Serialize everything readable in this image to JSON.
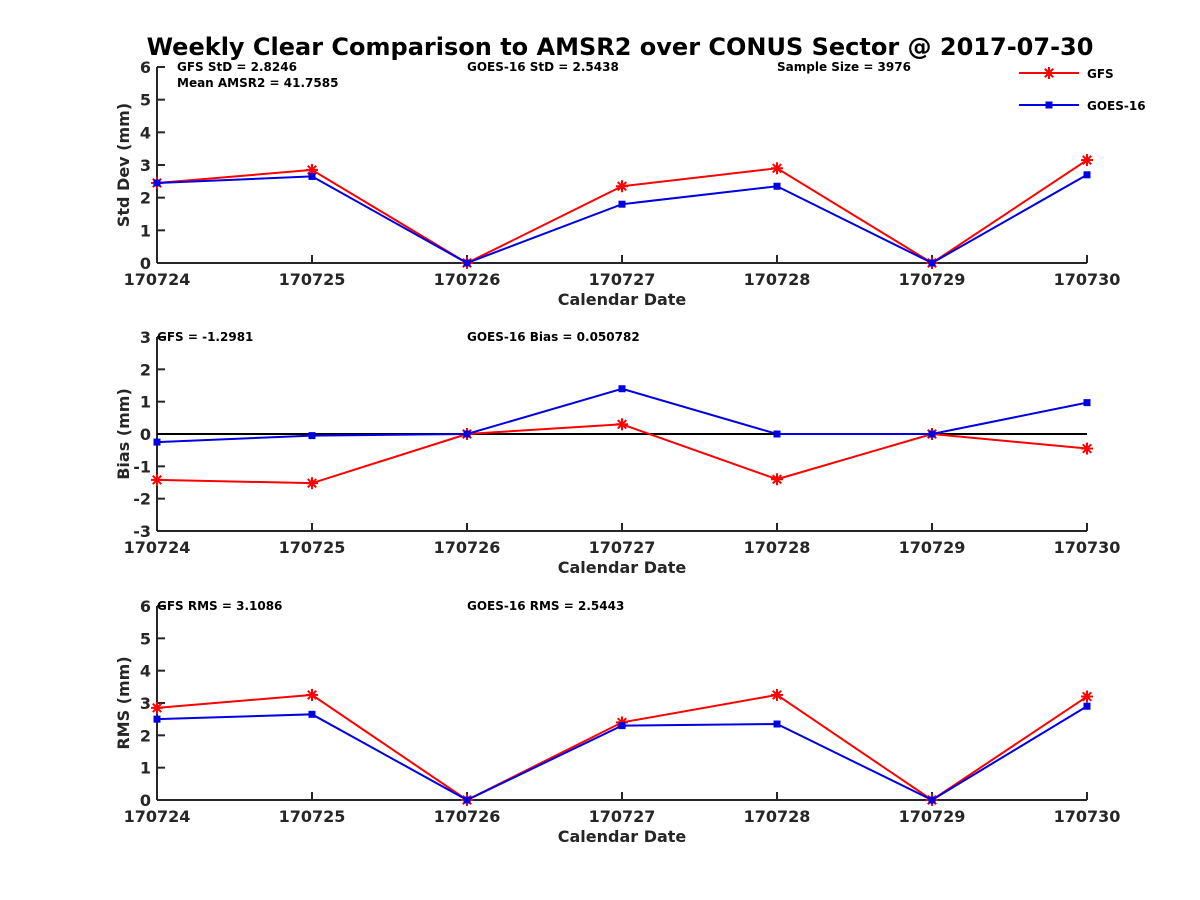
{
  "title": "Weekly Clear Comparison to AMSR2 over CONUS Sector @ 2017-07-30",
  "colors": {
    "GFS": "#ff0000",
    "GOES-16": "#0000e0"
  },
  "legend": {
    "position": "top-right",
    "entries": [
      {
        "name": "GFS",
        "marker": "asterisk"
      },
      {
        "name": "GOES-16",
        "marker": "square"
      }
    ]
  },
  "chart_data": [
    {
      "type": "line",
      "categories": [
        "170724",
        "170725",
        "170726",
        "170727",
        "170728",
        "170729",
        "170730"
      ],
      "xlabel": "Calendar Date",
      "ylabel": "Std Dev (mm)",
      "ylim": [
        0,
        6
      ],
      "yticks": [
        "0",
        "1",
        "2",
        "3",
        "4",
        "5",
        "6"
      ],
      "zero_line": false,
      "annotations": [
        "GFS StD = 2.8246",
        "Mean AMSR2 = 41.7585",
        "GOES-16 StD = 2.5438",
        "Sample Size = 3976"
      ],
      "series": [
        {
          "name": "GFS",
          "values": [
            2.45,
            2.85,
            0.0,
            2.35,
            2.9,
            0.0,
            3.15
          ]
        },
        {
          "name": "GOES-16",
          "values": [
            2.45,
            2.65,
            0.0,
            1.8,
            2.35,
            0.0,
            2.7
          ]
        }
      ]
    },
    {
      "type": "line",
      "categories": [
        "170724",
        "170725",
        "170726",
        "170727",
        "170728",
        "170729",
        "170730"
      ],
      "xlabel": "Calendar Date",
      "ylabel": "Bias (mm)",
      "ylim": [
        -3,
        3
      ],
      "yticks": [
        "-3",
        "-2",
        "-1",
        "0",
        "1",
        "2",
        "3"
      ],
      "zero_line": true,
      "annotations": [
        "GFS = -1.2981",
        "GOES-16 Bias  = 0.050782"
      ],
      "series": [
        {
          "name": "GFS",
          "values": [
            -1.42,
            -1.52,
            0.0,
            0.3,
            -1.4,
            0.0,
            -0.45
          ]
        },
        {
          "name": "GOES-16",
          "values": [
            -0.25,
            -0.05,
            0.0,
            1.4,
            0.0,
            0.0,
            0.97
          ]
        }
      ]
    },
    {
      "type": "line",
      "categories": [
        "170724",
        "170725",
        "170726",
        "170727",
        "170728",
        "170729",
        "170730"
      ],
      "xlabel": "Calendar Date",
      "ylabel": "RMS (mm)",
      "ylim": [
        0,
        6
      ],
      "yticks": [
        "0",
        "1",
        "2",
        "3",
        "4",
        "5",
        "6"
      ],
      "zero_line": false,
      "annotations": [
        "GFS RMS = 3.1086",
        "GOES-16 RMS = 2.5443"
      ],
      "series": [
        {
          "name": "GFS",
          "values": [
            2.85,
            3.25,
            0.0,
            2.4,
            3.25,
            0.0,
            3.2
          ]
        },
        {
          "name": "GOES-16",
          "values": [
            2.5,
            2.65,
            0.0,
            2.3,
            2.35,
            0.0,
            2.9
          ]
        }
      ]
    }
  ]
}
